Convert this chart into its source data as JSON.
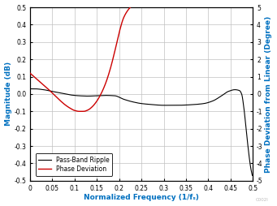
{
  "xlabel": "Normalized Frequency (1/fₛ)",
  "ylabel_left": "Magnitude (dB)",
  "ylabel_right": "Phase Deviation from Linear (Degree)",
  "xlim": [
    0,
    0.5
  ],
  "ylim_left": [
    -0.5,
    0.5
  ],
  "ylim_right": [
    -5,
    5
  ],
  "xticks": [
    0,
    0.05,
    0.1,
    0.15,
    0.2,
    0.25,
    0.3,
    0.35,
    0.4,
    0.45,
    0.5
  ],
  "yticks_left": [
    -0.5,
    -0.4,
    -0.3,
    -0.2,
    -0.1,
    0.0,
    0.1,
    0.2,
    0.3,
    0.4,
    0.5
  ],
  "yticks_right": [
    -5,
    -4,
    -3,
    -2,
    -1,
    0,
    1,
    2,
    3,
    4,
    5
  ],
  "pass_band_color": "#000000",
  "phase_dev_color": "#cc0000",
  "legend_pass": "Pass-Band Ripple",
  "legend_phase": "Phase Deviation",
  "background_color": "#ffffff",
  "grid_color": "#c0c0c0",
  "label_color": "#0070c0",
  "watermark": "C002I",
  "figsize": [
    3.41,
    2.54
  ],
  "dpi": 100,
  "pb_x": [
    0,
    0.01,
    0.03,
    0.05,
    0.07,
    0.09,
    0.11,
    0.13,
    0.15,
    0.17,
    0.19,
    0.21,
    0.23,
    0.25,
    0.27,
    0.3,
    0.33,
    0.36,
    0.39,
    0.41,
    0.43,
    0.445,
    0.46,
    0.47,
    0.475,
    0.48,
    0.485,
    0.49,
    0.495,
    0.499
  ],
  "pb_y": [
    0.03,
    0.03,
    0.025,
    0.015,
    0.005,
    -0.005,
    -0.01,
    -0.012,
    -0.01,
    -0.008,
    -0.01,
    -0.03,
    -0.045,
    -0.055,
    -0.06,
    -0.065,
    -0.065,
    -0.062,
    -0.055,
    -0.04,
    -0.01,
    0.015,
    0.025,
    0.02,
    0.0,
    -0.08,
    -0.2,
    -0.32,
    -0.42,
    -0.47
  ],
  "ph_x": [
    0,
    0.02,
    0.04,
    0.06,
    0.08,
    0.09,
    0.1,
    0.11,
    0.12,
    0.13,
    0.14,
    0.15,
    0.16,
    0.17,
    0.18,
    0.19,
    0.2,
    0.21,
    0.22,
    0.225
  ],
  "ph_y": [
    1.2,
    0.75,
    0.3,
    -0.2,
    -0.65,
    -0.82,
    -0.95,
    -1.0,
    -1.0,
    -0.92,
    -0.72,
    -0.4,
    0.05,
    0.65,
    1.45,
    2.45,
    3.55,
    4.4,
    4.85,
    5.0
  ]
}
